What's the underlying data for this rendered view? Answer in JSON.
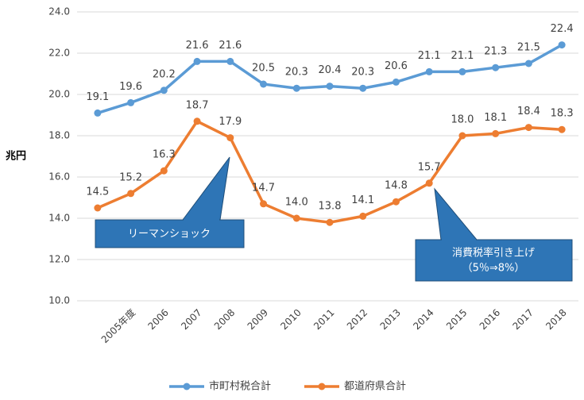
{
  "chart_data": {
    "type": "line",
    "ylabel": "兆円",
    "categories": [
      null,
      "2005年度",
      "2006",
      "2007",
      "2008",
      "2009",
      "2010",
      "2011",
      "2012",
      "2013",
      "2014",
      "2015",
      "2016",
      "2017",
      "2018"
    ],
    "series": [
      {
        "name": "市町村税合計",
        "color": "#5b9bd5",
        "values": [
          19.1,
          19.6,
          20.2,
          21.6,
          21.6,
          20.5,
          20.3,
          20.4,
          20.3,
          20.6,
          21.1,
          21.1,
          21.3,
          21.5,
          22.4
        ],
        "value_labels": [
          "19.1",
          "19.6",
          "20.2",
          "21.6",
          "21.6",
          "20.5",
          "20.3",
          "20.4",
          "20.3",
          "20.6",
          "21.1",
          "21.1",
          "21.3",
          "21.5",
          "22.4"
        ]
      },
      {
        "name": "都道府県合計",
        "color": "#ed7d31",
        "values": [
          14.5,
          15.2,
          16.3,
          18.7,
          17.9,
          14.7,
          14.0,
          13.8,
          14.1,
          14.8,
          15.7,
          18.0,
          18.1,
          18.4,
          18.3
        ],
        "value_labels": [
          "14.5",
          "15.2",
          "16.3",
          "18.7",
          "17.9",
          "14.7",
          "14.0",
          "13.8",
          "14.1",
          "14.8",
          "15.7",
          "18.0",
          "18.1",
          "18.4",
          "18.3"
        ]
      }
    ],
    "ylim": [
      10,
      24
    ],
    "yticks": [
      {
        "value": 10,
        "label": "10.0"
      },
      {
        "value": 12,
        "label": "12.0"
      },
      {
        "value": 14,
        "label": "14.0"
      },
      {
        "value": 16,
        "label": "16.0"
      },
      {
        "value": 18,
        "label": "18.0"
      },
      {
        "value": 20,
        "label": "20.0"
      },
      {
        "value": 22,
        "label": "22.0"
      },
      {
        "value": 24,
        "label": "24.0"
      }
    ],
    "grid": true,
    "legend": "bottom",
    "annotations": [
      {
        "lines": [
          "リーマンショック"
        ]
      },
      {
        "lines": [
          "消費税率引き上げ",
          "（5％⇒8%）"
        ]
      }
    ]
  }
}
